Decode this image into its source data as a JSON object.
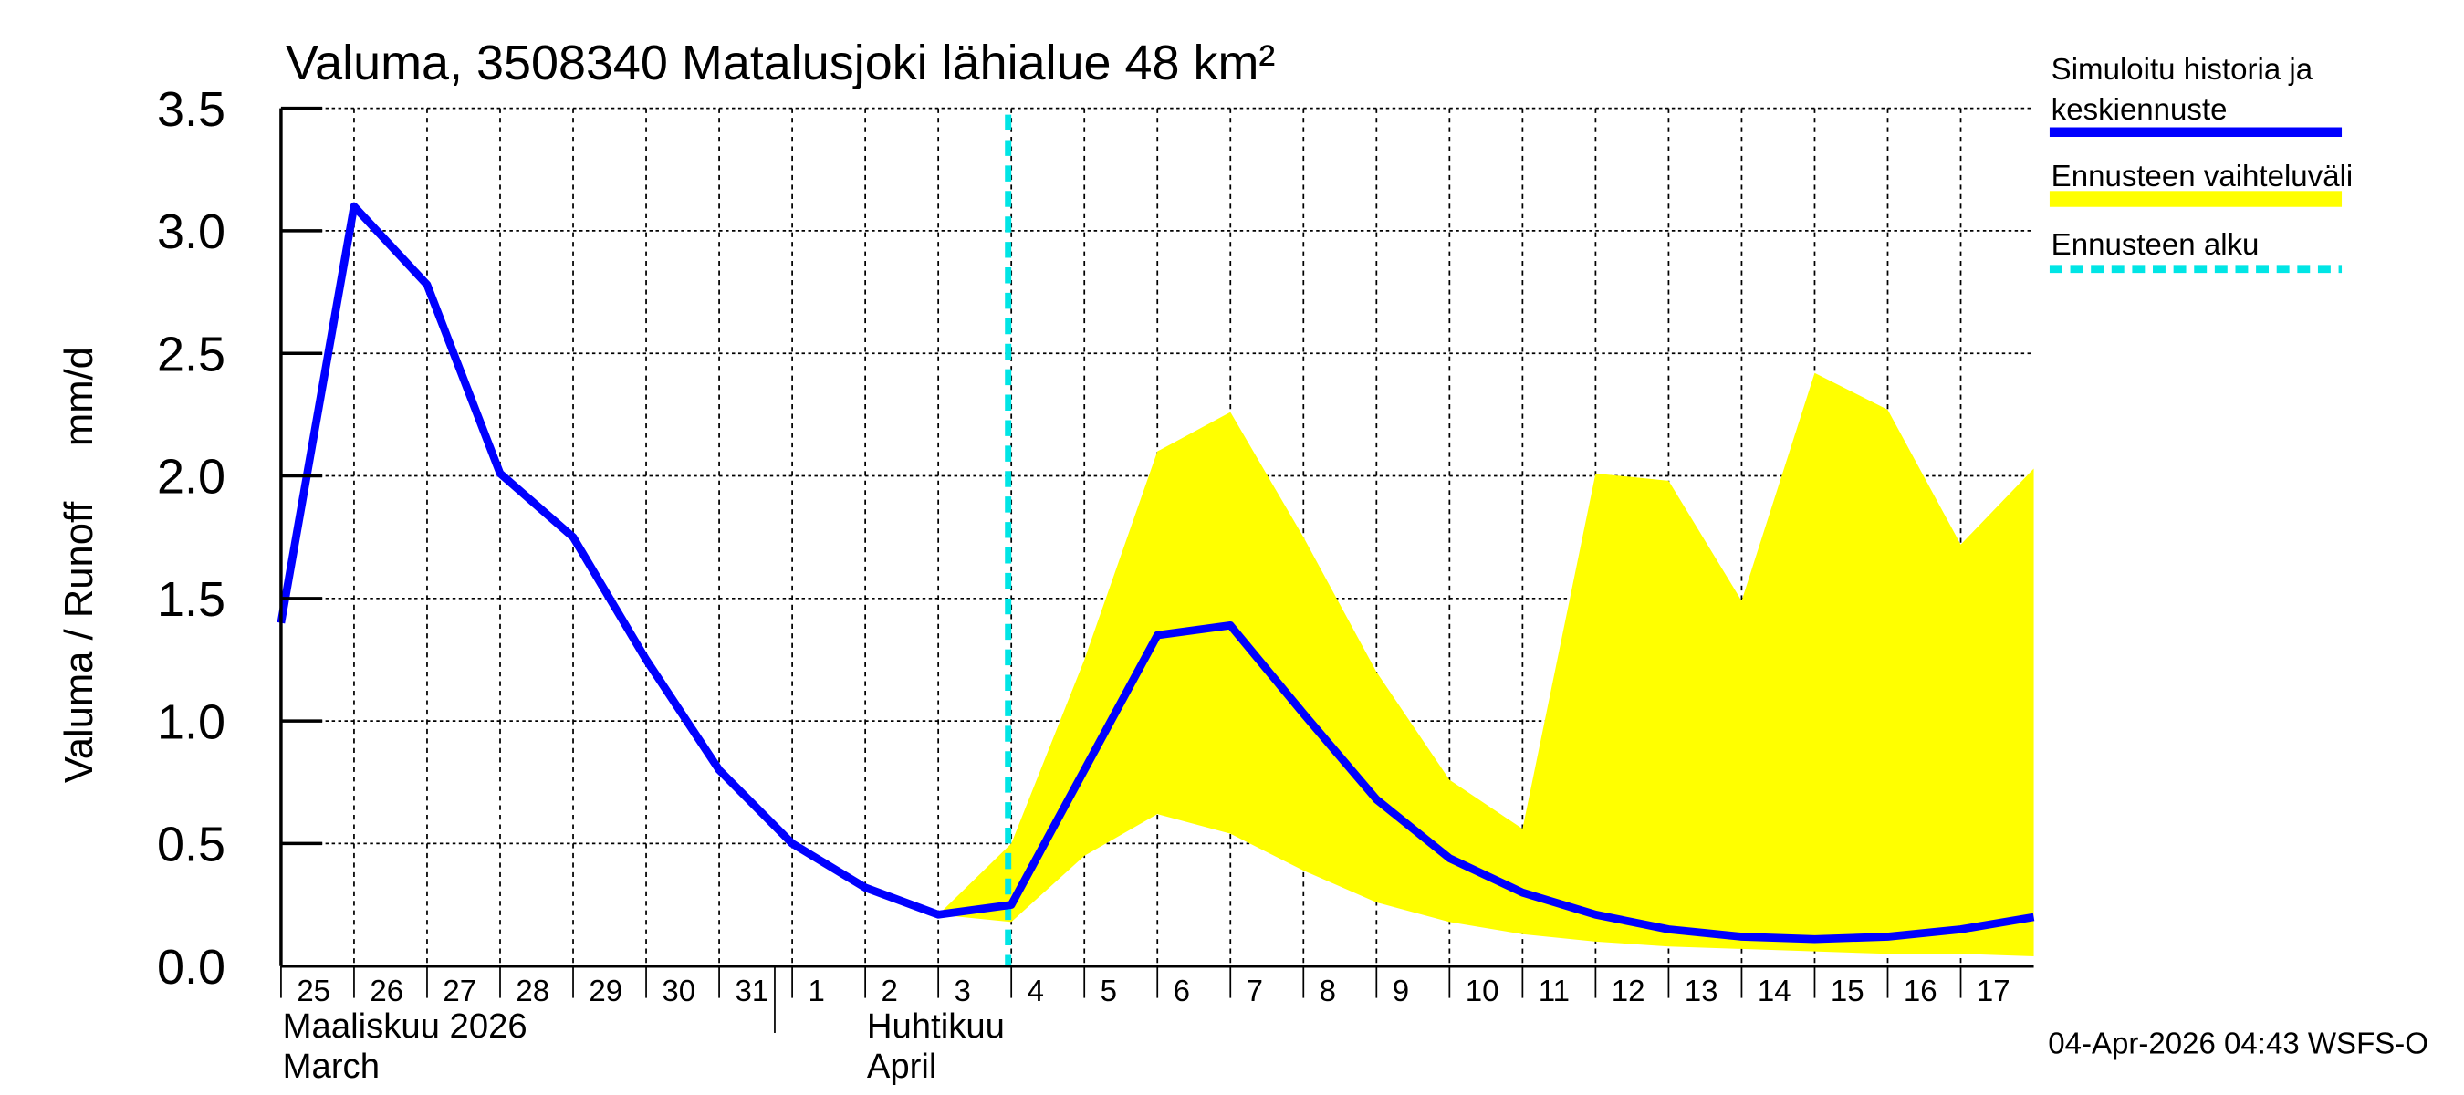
{
  "chart_data": {
    "type": "line",
    "title": "Valuma, 3508340 Matalusjoki lähialue 48 km²",
    "ylabel": "Valuma / Runoff     mm/d",
    "ylim": [
      0,
      3.5
    ],
    "yticks": [
      "0.0",
      "0.5",
      "1.0",
      "1.5",
      "2.0",
      "2.5",
      "3.0",
      "3.5"
    ],
    "x_day_labels": [
      "25",
      "26",
      "27",
      "28",
      "29",
      "30",
      "31",
      "1",
      "2",
      "3",
      "4",
      "5",
      "6",
      "7",
      "8",
      "9",
      "10",
      "11",
      "12",
      "13",
      "14",
      "15",
      "16",
      "17"
    ],
    "month_labels": [
      {
        "line1": "Maaliskuu 2026",
        "line2": "March",
        "day_index": 0
      },
      {
        "line1": "Huhtikuu",
        "line2": "April",
        "day_index": 8
      }
    ],
    "forecast_start_index": 10,
    "series": [
      {
        "name": "Simuloitu historia ja keskiennuste",
        "color": "#0000ff",
        "start_index": 0,
        "values": [
          1.4,
          3.1,
          2.78,
          2.01,
          1.75,
          1.25,
          0.8,
          0.5,
          0.32,
          0.21,
          0.25,
          0.8,
          1.35,
          1.39,
          1.03,
          0.68,
          0.44,
          0.3,
          0.21,
          0.15,
          0.12,
          0.11,
          0.12,
          0.15,
          0.2
        ]
      },
      {
        "name": "Ennusteen vaihteluväli",
        "color": "#ffff00",
        "type": "band",
        "start_index": 9,
        "upper": [
          0.21,
          0.5,
          1.25,
          2.1,
          2.26,
          1.75,
          1.2,
          0.76,
          0.56,
          2.01,
          1.98,
          1.49,
          2.42,
          2.27,
          1.72,
          2.03
        ],
        "lower": [
          0.21,
          0.18,
          0.45,
          0.62,
          0.54,
          0.39,
          0.26,
          0.18,
          0.13,
          0.1,
          0.08,
          0.07,
          0.06,
          0.05,
          0.05,
          0.04
        ]
      }
    ],
    "legend": {
      "placement": "right",
      "entries": [
        {
          "label_line1": "Simuloitu historia ja",
          "label_line2": "keskiennuste",
          "color": "#0000ff",
          "style": "solid"
        },
        {
          "label_line1": "Ennusteen vaihteluväli",
          "label_line2": "",
          "color": "#ffff00",
          "style": "band"
        },
        {
          "label_line1": "Ennusteen alku",
          "label_line2": "",
          "color": "#00e5e5",
          "style": "dashed"
        }
      ]
    },
    "footer": "04-Apr-2026 04:43 WSFS-O",
    "grid": true
  }
}
